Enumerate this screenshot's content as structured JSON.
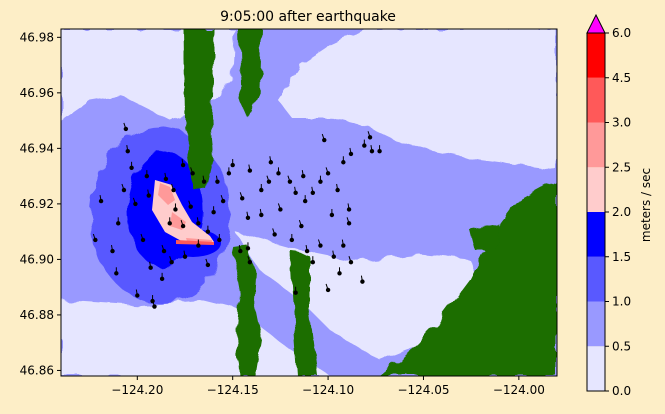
{
  "chart_data": {
    "type": "heatmap",
    "title": "9:05:00 after earthquake",
    "xlabel": "",
    "ylabel": "",
    "xlim": [
      -124.24,
      -123.98
    ],
    "ylim": [
      46.858,
      46.983
    ],
    "x_ticks": [
      {
        "value": -124.2,
        "label": "−124.20"
      },
      {
        "value": -124.15,
        "label": "−124.15"
      },
      {
        "value": -124.1,
        "label": "−124.10"
      },
      {
        "value": -124.05,
        "label": "−124.05"
      },
      {
        "value": -124.0,
        "label": "−124.00"
      }
    ],
    "y_ticks": [
      {
        "value": 46.86,
        "label": "46.86"
      },
      {
        "value": 46.88,
        "label": "46.88"
      },
      {
        "value": 46.9,
        "label": "46.90"
      },
      {
        "value": 46.92,
        "label": "46.92"
      },
      {
        "value": 46.94,
        "label": "46.94"
      },
      {
        "value": 46.96,
        "label": "46.96"
      },
      {
        "value": 46.98,
        "label": "46.98"
      }
    ],
    "grid": false,
    "colorbar": {
      "label": "meters / sec",
      "extend": "max",
      "levels": [
        {
          "value": 0.0,
          "label": "0.0"
        },
        {
          "value": 0.5,
          "label": "0.5"
        },
        {
          "value": 1.0,
          "label": "1.0"
        },
        {
          "value": 1.5,
          "label": "1.5"
        },
        {
          "value": 2.0,
          "label": "2.0"
        },
        {
          "value": 2.5,
          "label": "2.5"
        },
        {
          "value": 3.0,
          "label": "3.0"
        },
        {
          "value": 4.5,
          "label": "4.5"
        },
        {
          "value": 6.0,
          "label": "6.0"
        }
      ],
      "colors": [
        "#e6e6ff",
        "#9999ff",
        "#5959ff",
        "#0000ff",
        "#ffcccc",
        "#ff9999",
        "#ff5959",
        "#ff0000"
      ],
      "over_color": "#ff00ff"
    },
    "land_color": "#1a6e00",
    "debris_points": [
      [
        -124.206,
        46.947
      ],
      [
        -124.205,
        46.939
      ],
      [
        -124.203,
        46.933
      ],
      [
        -124.207,
        46.925
      ],
      [
        -124.219,
        46.921
      ],
      [
        -124.21,
        46.913
      ],
      [
        -124.201,
        46.92
      ],
      [
        -124.194,
        46.923
      ],
      [
        -124.195,
        46.93
      ],
      [
        -124.181,
        46.925
      ],
      [
        -124.185,
        46.929
      ],
      [
        -124.18,
        46.918
      ],
      [
        -124.172,
        46.919
      ],
      [
        -124.168,
        46.913
      ],
      [
        -124.163,
        46.91
      ],
      [
        -124.155,
        46.921
      ],
      [
        -124.158,
        46.928
      ],
      [
        -124.152,
        46.931
      ],
      [
        -124.145,
        46.922
      ],
      [
        -124.142,
        46.915
      ],
      [
        -124.135,
        46.925
      ],
      [
        -124.131,
        46.928
      ],
      [
        -124.13,
        46.935
      ],
      [
        -124.126,
        46.931
      ],
      [
        -124.12,
        46.928
      ],
      [
        -124.117,
        46.924
      ],
      [
        -124.112,
        46.921
      ],
      [
        -124.114,
        46.912
      ],
      [
        -124.108,
        46.924
      ],
      [
        -124.104,
        46.928
      ],
      [
        -124.1,
        46.931
      ],
      [
        -124.095,
        46.925
      ],
      [
        -124.092,
        46.935
      ],
      [
        -124.102,
        46.943
      ],
      [
        -124.088,
        46.938
      ],
      [
        -124.081,
        46.941
      ],
      [
        -124.078,
        46.944
      ],
      [
        -124.077,
        46.939
      ],
      [
        -124.073,
        46.939
      ],
      [
        -124.222,
        46.907
      ],
      [
        -124.213,
        46.903
      ],
      [
        -124.211,
        46.895
      ],
      [
        -124.197,
        46.907
      ],
      [
        -124.193,
        46.897
      ],
      [
        -124.187,
        46.893
      ],
      [
        -124.182,
        46.899
      ],
      [
        -124.175,
        46.901
      ],
      [
        -124.168,
        46.905
      ],
      [
        -124.163,
        46.898
      ],
      [
        -124.2,
        46.887
      ],
      [
        -124.192,
        46.885
      ],
      [
        -124.191,
        46.883
      ],
      [
        -124.146,
        46.903
      ],
      [
        -124.142,
        46.904
      ],
      [
        -124.141,
        46.899
      ],
      [
        -124.111,
        46.903
      ],
      [
        -124.108,
        46.899
      ],
      [
        -124.104,
        46.905
      ],
      [
        -124.097,
        46.901
      ],
      [
        -124.094,
        46.895
      ],
      [
        -124.088,
        46.899
      ],
      [
        -124.082,
        46.892
      ],
      [
        -124.117,
        46.888
      ],
      [
        -124.1,
        46.889
      ],
      [
        -124.141,
        46.932
      ],
      [
        -124.15,
        46.934
      ],
      [
        -124.171,
        46.931
      ],
      [
        -124.176,
        46.934
      ],
      [
        -124.183,
        46.913
      ],
      [
        -124.176,
        46.912
      ],
      [
        -124.165,
        46.928
      ],
      [
        -124.16,
        46.917
      ],
      [
        -124.125,
        46.918
      ],
      [
        -124.113,
        46.93
      ],
      [
        -124.098,
        46.916
      ],
      [
        -124.089,
        46.913
      ],
      [
        -124.092,
        46.905
      ],
      [
        -124.119,
        46.907
      ],
      [
        -124.128,
        46.909
      ],
      [
        -124.135,
        46.916
      ],
      [
        -124.157,
        46.907
      ],
      [
        -124.186,
        46.903
      ],
      [
        -124.089,
        46.918
      ]
    ]
  }
}
